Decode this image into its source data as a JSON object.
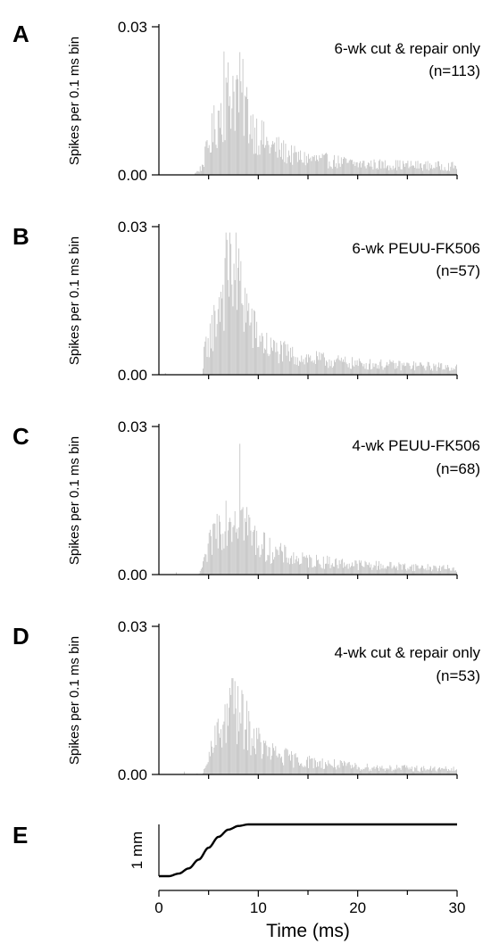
{
  "chart_data": [
    {
      "panel": "A",
      "type": "bar",
      "ylabel": "Spikes per 0.1 ms bin",
      "ylim": [
        0,
        0.03
      ],
      "yticks": [
        "0.03",
        "0.00"
      ],
      "xlim": [
        0,
        30
      ],
      "bin_width_ms": 0.1,
      "annotation": [
        "6-wk cut & repair only",
        "(n=113)"
      ],
      "profile": [
        {
          "x": 0,
          "y": 0
        },
        {
          "x": 3.5,
          "y": 0
        },
        {
          "x": 4.3,
          "y": 0.0015
        },
        {
          "x": 5.0,
          "y": 0.006
        },
        {
          "x": 6.0,
          "y": 0.012
        },
        {
          "x": 7.0,
          "y": 0.016
        },
        {
          "x": 7.5,
          "y": 0.0175
        },
        {
          "x": 8.3,
          "y": 0.016
        },
        {
          "x": 9.5,
          "y": 0.0095
        },
        {
          "x": 11,
          "y": 0.006
        },
        {
          "x": 14,
          "y": 0.0035
        },
        {
          "x": 20,
          "y": 0.0022
        },
        {
          "x": 30,
          "y": 0.0017
        }
      ],
      "peak": {
        "x": 6.6,
        "y": 0.025
      }
    },
    {
      "panel": "B",
      "type": "bar",
      "ylabel": "Spikes per 0.1 ms bin",
      "ylim": [
        0,
        0.03
      ],
      "yticks": [
        "0.03",
        "0.00"
      ],
      "xlim": [
        0,
        30
      ],
      "bin_width_ms": 0.1,
      "annotation": [
        "6-wk PEUU-FK506",
        "(n=57)"
      ],
      "profile": [
        {
          "x": 0,
          "y": 0
        },
        {
          "x": 4.4,
          "y": 0
        },
        {
          "x": 4.6,
          "y": 0.005
        },
        {
          "x": 5.5,
          "y": 0.0095
        },
        {
          "x": 6.3,
          "y": 0.017
        },
        {
          "x": 7.0,
          "y": 0.021
        },
        {
          "x": 7.5,
          "y": 0.021
        },
        {
          "x": 8.3,
          "y": 0.017
        },
        {
          "x": 9.5,
          "y": 0.009
        },
        {
          "x": 11,
          "y": 0.0055
        },
        {
          "x": 14,
          "y": 0.0035
        },
        {
          "x": 20,
          "y": 0.0022
        },
        {
          "x": 30,
          "y": 0.0015
        }
      ],
      "peak": {
        "x": 7.3,
        "y": 0.0265
      }
    },
    {
      "panel": "C",
      "type": "bar",
      "ylabel": "Spikes per 0.1 ms bin",
      "ylim": [
        0,
        0.03
      ],
      "yticks": [
        "0.03",
        "0.00"
      ],
      "xlim": [
        0,
        30
      ],
      "bin_width_ms": 0.1,
      "annotation": [
        "4-wk PEUU-FK506",
        "(n=68)"
      ],
      "profile": [
        {
          "x": 0,
          "y": 0
        },
        {
          "x": 4.0,
          "y": 0
        },
        {
          "x": 4.6,
          "y": 0.0025
        },
        {
          "x": 5.5,
          "y": 0.0085
        },
        {
          "x": 6.5,
          "y": 0.0115
        },
        {
          "x": 7.5,
          "y": 0.0125
        },
        {
          "x": 8.3,
          "y": 0.012
        },
        {
          "x": 9.5,
          "y": 0.0075
        },
        {
          "x": 11,
          "y": 0.005
        },
        {
          "x": 14,
          "y": 0.003
        },
        {
          "x": 20,
          "y": 0.002
        },
        {
          "x": 30,
          "y": 0.0012
        }
      ],
      "peak": {
        "x": 8.2,
        "y": 0.0265
      }
    },
    {
      "panel": "D",
      "type": "bar",
      "ylabel": "Spikes per 0.1 ms bin",
      "ylim": [
        0,
        0.03
      ],
      "yticks": [
        "0.03",
        "0.00"
      ],
      "xlim": [
        0,
        30
      ],
      "bin_width_ms": 0.1,
      "annotation": [
        "4-wk cut & repair only",
        "(n=53)"
      ],
      "profile": [
        {
          "x": 0,
          "y": 0
        },
        {
          "x": 4.4,
          "y": 0
        },
        {
          "x": 4.8,
          "y": 0.002
        },
        {
          "x": 5.8,
          "y": 0.0075
        },
        {
          "x": 6.8,
          "y": 0.0115
        },
        {
          "x": 7.5,
          "y": 0.0125
        },
        {
          "x": 8.5,
          "y": 0.011
        },
        {
          "x": 9.5,
          "y": 0.0075
        },
        {
          "x": 11,
          "y": 0.0045
        },
        {
          "x": 14,
          "y": 0.0028
        },
        {
          "x": 20,
          "y": 0.0015
        },
        {
          "x": 30,
          "y": 0.001
        }
      ],
      "peak": {
        "x": 7.4,
        "y": 0.0195
      }
    },
    {
      "panel": "E",
      "type": "line",
      "ylabel": "1 mm",
      "xlabel": "Time (ms)",
      "xlim": [
        0,
        30
      ],
      "xticks": [
        0,
        10,
        20,
        30
      ],
      "ylim": [
        0,
        1
      ],
      "x": [
        0,
        1,
        2,
        3,
        4,
        5,
        6,
        7,
        8,
        9,
        10,
        15,
        20,
        25,
        30
      ],
      "y": [
        0,
        0.0,
        0.05,
        0.15,
        0.32,
        0.55,
        0.76,
        0.9,
        0.97,
        1.0,
        1.0,
        1.0,
        1.0,
        1.0,
        1.0
      ]
    }
  ]
}
